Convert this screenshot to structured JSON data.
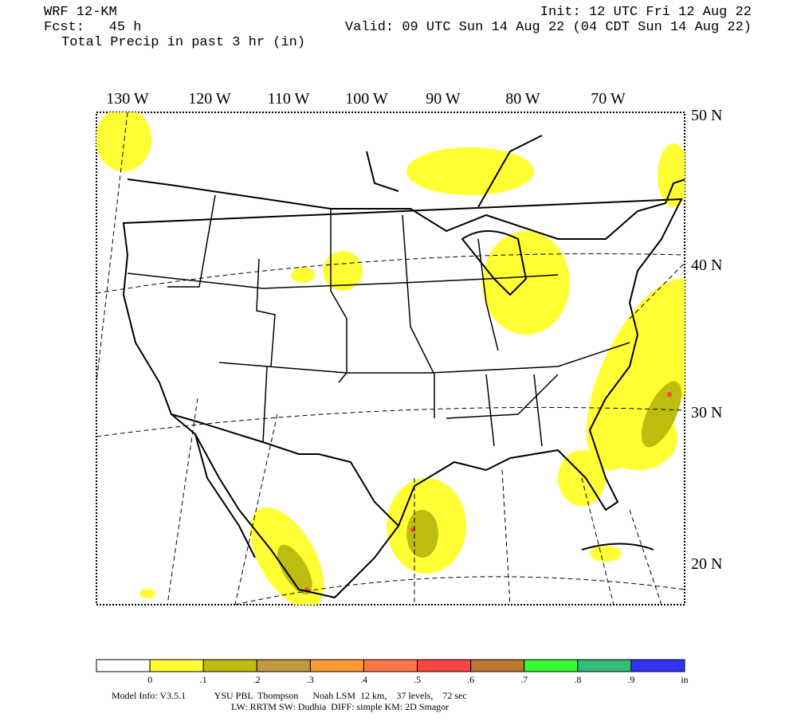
{
  "header": {
    "model": "WRF 12-KM",
    "forecast": "Fcst:   45 h",
    "field": "Total Precip in past 3 hr (in)",
    "init": "Init: 12 UTC Fri 12 Aug 22",
    "valid": "Valid: 09 UTC Sun 14 Aug 22 (04 CDT Sun 14 Aug 22)"
  },
  "map": {
    "longitudes": [
      "130 W",
      "120 W",
      "110 W",
      "100 W",
      "90 W",
      "80 W",
      "70 W"
    ],
    "latitudes": [
      "50 N",
      "40 N",
      "30 N",
      "20 N"
    ]
  },
  "legend": {
    "labels": [
      "0",
      ".1",
      ".2",
      ".3",
      ".4",
      ".5",
      ".6",
      ".7",
      ".8",
      ".9"
    ],
    "unit": "in",
    "colors": [
      "#ffffff",
      "#ffff33",
      "#bdbd0f",
      "#c09a40",
      "#ff9933",
      "#ff7744",
      "#ff4444",
      "#bb7733",
      "#33ff33",
      "#33bb77",
      "#3333ff"
    ]
  },
  "footer": {
    "line1": "Model Info: V3.5.1            YSU PBL  Thompson      Noah LSM  12 km,    37 levels,    72 sec",
    "line2": "LW: RRTM SW: Dudhia  DIFF: simple KM: 2D Smagor"
  }
}
